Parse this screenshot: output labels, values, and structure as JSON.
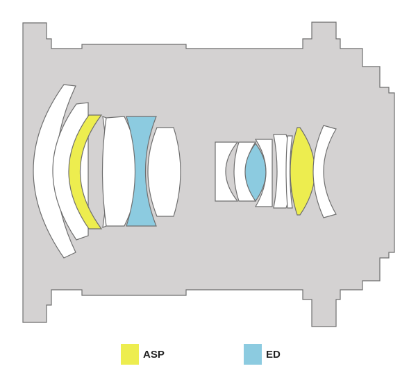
{
  "colors": {
    "housing": "#d4d2d2",
    "outline": "#6e6e6e",
    "plain_element": "#ffffff",
    "asp": "#eded4f",
    "ed": "#8ccbe0"
  },
  "legend": [
    {
      "label": "ASP",
      "color": "#eded4f"
    },
    {
      "label": "ED",
      "color": "#8ccbe0"
    }
  ]
}
